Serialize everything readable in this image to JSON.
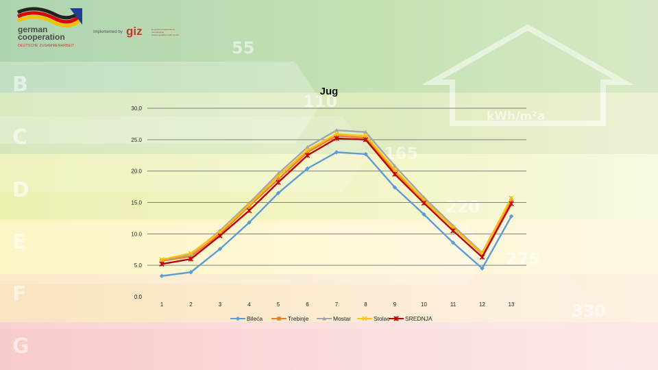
{
  "branding": {
    "partner_text": "german cooperation",
    "partner_sub": "DEUTSCHE ZUSAMMENARBEIT",
    "implemented_by": "Implemented by",
    "giz": "giz",
    "giz_sub": "Deutsche Gesellschaft für Internationale Zusammenarbeit (GIZ) GmbH"
  },
  "background": {
    "classes": [
      "B",
      "C",
      "D",
      "E",
      "F",
      "G"
    ],
    "scale_numbers": [
      "55",
      "110",
      "165",
      "220",
      "275",
      "330"
    ],
    "unit": "kWh/m²a",
    "colors": [
      "#3f9a45",
      "#8cbf3e",
      "#d6df4a",
      "#fbe95a",
      "#f7b84a",
      "#ef7d3e",
      "#e84c3d"
    ]
  },
  "chart_data": {
    "type": "line",
    "title": "Jug",
    "categories": [
      "1",
      "2",
      "3",
      "4",
      "5",
      "6",
      "7",
      "8",
      "9",
      "10",
      "11",
      "12",
      "13"
    ],
    "ylim": [
      0,
      30
    ],
    "yticks": [
      "0.0",
      "5.0",
      "10.0",
      "15.0",
      "20.0",
      "25.0",
      "30.0"
    ],
    "grid": true,
    "legend_position": "bottom",
    "series": [
      {
        "name": "Bileća",
        "color": "#5b9bd5",
        "marker": "diamond",
        "values": [
          3.3,
          3.9,
          7.6,
          11.8,
          16.5,
          20.4,
          23.0,
          22.7,
          17.4,
          13.1,
          8.6,
          4.5,
          12.8
        ]
      },
      {
        "name": "Trebinje",
        "color": "#ed7d31",
        "marker": "square",
        "values": [
          5.7,
          6.4,
          10.0,
          14.4,
          18.7,
          23.0,
          25.6,
          25.3,
          19.9,
          15.3,
          11.0,
          6.8,
          15.3
        ]
      },
      {
        "name": "Mostar",
        "color": "#a5a5a5",
        "marker": "triangle",
        "values": [
          5.8,
          6.7,
          10.5,
          14.9,
          19.6,
          23.8,
          26.5,
          26.2,
          20.8,
          15.8,
          11.3,
          7.0,
          15.7
        ]
      },
      {
        "name": "Stolac",
        "color": "#ffc000",
        "marker": "x",
        "values": [
          5.9,
          6.9,
          10.3,
          14.6,
          19.2,
          23.3,
          25.9,
          25.6,
          20.2,
          15.4,
          11.0,
          6.9,
          15.7
        ]
      },
      {
        "name": "SREDNJA",
        "color": "#c00000",
        "marker": "star",
        "values": [
          5.2,
          6.0,
          9.7,
          13.7,
          18.2,
          22.5,
          25.2,
          25.0,
          19.5,
          14.9,
          10.5,
          6.3,
          14.8
        ]
      }
    ]
  }
}
